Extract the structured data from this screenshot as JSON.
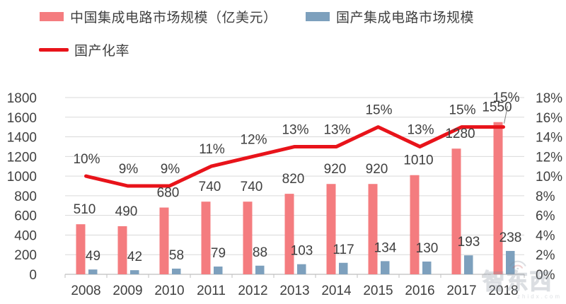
{
  "legend": {
    "items": [
      {
        "label": "中国集成电路市场规模（亿美元）",
        "color": "#F47C7F",
        "type": "bar"
      },
      {
        "label": "国产集成电路市场规模",
        "color": "#7DA0BD",
        "type": "bar"
      },
      {
        "label": "国产化率",
        "color": "#E8131A",
        "type": "line"
      }
    ]
  },
  "watermark": {
    "text": "智东西",
    "subtext": "zhidx.com"
  },
  "chart_data": {
    "type": "bar",
    "subtype": "grouped-bars-plus-line-dual-axis",
    "title": "",
    "categories": [
      "2008",
      "2009",
      "2010",
      "2011",
      "2012",
      "2013",
      "2014",
      "2015",
      "2016",
      "2017",
      "2018"
    ],
    "series": [
      {
        "name": "中国集成电路市场规模（亿美元）",
        "type": "bar",
        "axis": "left",
        "color": "#F47C7F",
        "values": [
          510,
          490,
          680,
          740,
          740,
          820,
          920,
          920,
          1010,
          1280,
          1550
        ],
        "labels": [
          "510",
          "490",
          "680",
          "740",
          "740",
          "820",
          "920",
          "920",
          "1010",
          "1280",
          "1550"
        ]
      },
      {
        "name": "国产集成电路市场规模",
        "type": "bar",
        "axis": "left",
        "color": "#7DA0BD",
        "values": [
          49,
          42,
          58,
          79,
          88,
          103,
          117,
          134,
          130,
          193,
          238
        ],
        "labels": [
          "49",
          "42",
          "58",
          "79",
          "88",
          "103",
          "117",
          "134",
          "130",
          "193",
          "238"
        ]
      },
      {
        "name": "国产化率",
        "type": "line",
        "axis": "right",
        "color": "#E8131A",
        "values": [
          10,
          9,
          9,
          11,
          12,
          13,
          13,
          15,
          13,
          15,
          15
        ],
        "labels": [
          "10%",
          "9%",
          "9%",
          "11%",
          "12%",
          "13%",
          "13%",
          "15%",
          "13%",
          "15%",
          "15%"
        ]
      }
    ],
    "left_axis": {
      "min": 0,
      "max": 1800,
      "step": 200,
      "ticks": [
        0,
        200,
        400,
        600,
        800,
        1000,
        1200,
        1400,
        1600,
        1800
      ]
    },
    "right_axis": {
      "min": 0,
      "max": 18,
      "step": 2,
      "suffix": "%",
      "ticks": [
        "0%",
        "2%",
        "4%",
        "6%",
        "8%",
        "10%",
        "12%",
        "14%",
        "16%",
        "18%"
      ]
    },
    "grid": true,
    "gridline_color": "#D9D9D9",
    "axis_line_color": "#BFBFBF",
    "text_color": "#404040",
    "legend_position": "top-left"
  }
}
